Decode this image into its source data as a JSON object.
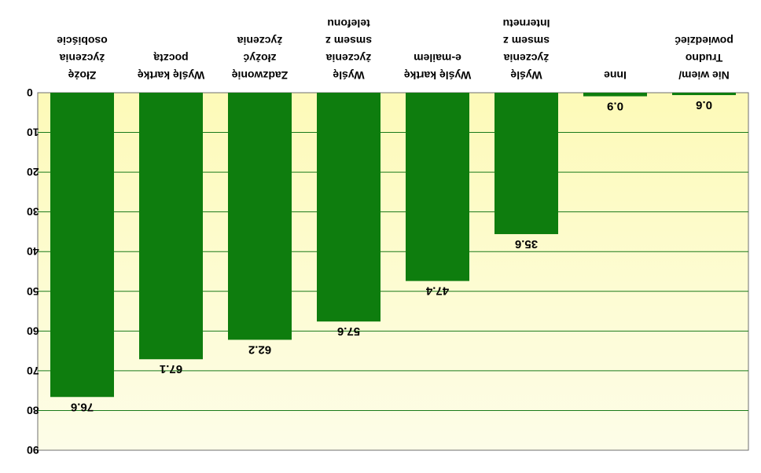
{
  "colors": {
    "bar": "#0e7d0e",
    "grid": "#1a7a1a",
    "plot_top": "#fdfde8",
    "plot_bottom": "#fdfab8",
    "axis": "#6f6f6f"
  },
  "chart_data": {
    "type": "bar",
    "orientation": "rendered upside-down and mirrored (rotated 180°)",
    "categories": [
      "Złożę życzenia osobiście",
      "Wyślę kartkę pocztą",
      "Zadzwonię złożyć życzenia",
      "Wyślę życzenia smsem z telefonu",
      "Wyślę kartkę e-mailem",
      "Wyślę życzenia smsem z Internetu",
      "Inne",
      "Nie wiem/ Trudno powiedzieć"
    ],
    "category_lines": [
      [
        "Złożę",
        "życzenia",
        "osobiście"
      ],
      [
        "Wyślę kartkę",
        "pocztą"
      ],
      [
        "Zadzwonię",
        "złożyć",
        "życzenia"
      ],
      [
        "Wyślę",
        "życzenia",
        "smsem z",
        "telefonu"
      ],
      [
        "Wyślę kartkę",
        "e-mailem"
      ],
      [
        "Wyślę",
        "życzenia",
        "smsem z",
        "Internetu"
      ],
      [
        "Inne"
      ],
      [
        "Nie wiem/",
        "Trudno",
        "powiedzieć"
      ]
    ],
    "values": [
      76.6,
      67.1,
      62.2,
      57.6,
      47.4,
      35.6,
      0.9,
      0.6
    ],
    "value_labels": [
      "76.6",
      "67.1",
      "62.2",
      "57.6",
      "47.4",
      "35.6",
      "0.9",
      "0.6"
    ],
    "ylim": [
      0,
      90
    ],
    "yticks": [
      0,
      10,
      20,
      30,
      40,
      50,
      60,
      70,
      80,
      90
    ],
    "grid": true,
    "legend": false
  }
}
